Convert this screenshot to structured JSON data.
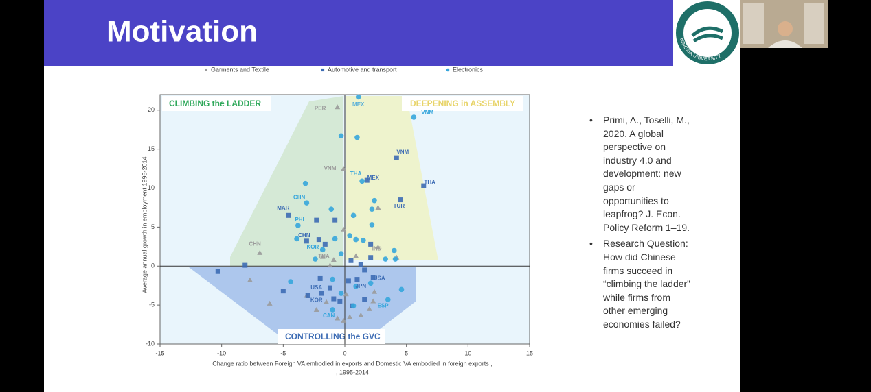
{
  "slide": {
    "title": "Motivation",
    "logo_text": "NINGXIA UNIVERSITY",
    "bullets": [
      "Primi, A., Toselli, M., 2020. A global perspective on industry 4.0 and development: new gaps or opportunities to leapfrog? J. Econ. Policy Reform 1–19.",
      "Research Question: How did Chinese firms succeed in “climbing the ladder” while firms from other emerging economies failed?"
    ]
  },
  "chart_data": {
    "type": "scatter",
    "x_label": [
      "Change ratio  between Foreign VA embodied in exports and  Domestic VA embodied in foreign exports ,",
      ", 1995-2014"
    ],
    "y_label": "Average annual growth in employment 1995-2014",
    "xlim": [
      -15,
      15
    ],
    "ylim": [
      -10,
      22
    ],
    "xticks": [
      -15,
      -10,
      -5,
      0,
      5,
      10,
      15
    ],
    "yticks": [
      -10,
      -5,
      0,
      5,
      10,
      15,
      20
    ],
    "regions": [
      "CLIMBING the LADDER",
      "DEEPENING in ASSEMBLY",
      "CONTROLLING the GVC"
    ],
    "series": [
      {
        "name": "Garments and Textile",
        "color": "#9a9a9a",
        "marker": "triangle",
        "x": [
          -0.6,
          -0.1,
          2.7,
          -6.9,
          -1.8,
          -0.9,
          0.9,
          2.7,
          4.2,
          -7.7,
          -6.1,
          -3.1,
          -2.3,
          -0.6,
          0.1,
          1.3,
          2.0,
          2.3,
          -1.5,
          -0.1,
          0.4,
          -0.1,
          -1.2,
          2.4
        ],
        "values": [
          20.4,
          12.5,
          7.5,
          1.7,
          1.2,
          0.8,
          1.3,
          2.4,
          1.1,
          -1.8,
          -4.8,
          -3.8,
          -5.6,
          -6.7,
          -3.6,
          -6.3,
          -5.5,
          -4.5,
          -4.6,
          -7.0,
          -6.5,
          4.7,
          0.1,
          -3.3
        ]
      },
      {
        "name": "Automotive and transport",
        "color": "#3d6cb4",
        "marker": "square",
        "x": [
          4.2,
          1.8,
          4.5,
          6.4,
          -4.6,
          -2.3,
          -0.8,
          -3.1,
          -2.1,
          -1.6,
          2.1,
          2.1,
          0.5,
          -8.1,
          -10.3,
          -5.0,
          -3.0,
          -2.0,
          -1.2,
          -0.9,
          -0.4,
          0.3,
          1.3,
          1.6,
          1.0,
          2.3,
          1.6,
          0.6,
          -1.9
        ],
        "values": [
          13.9,
          11.0,
          8.5,
          10.3,
          6.5,
          5.9,
          5.9,
          3.2,
          3.4,
          2.8,
          2.8,
          1.1,
          0.7,
          0.1,
          -0.7,
          -3.2,
          -3.8,
          -1.6,
          -2.8,
          -4.2,
          -4.5,
          -1.9,
          0.2,
          -0.5,
          -1.7,
          -1.5,
          -4.3,
          -5.1,
          -3.5
        ]
      },
      {
        "name": "Electronics",
        "color": "#36a6dc",
        "marker": "circle",
        "x": [
          1.1,
          5.6,
          -0.3,
          1.0,
          -3.2,
          1.4,
          -3.1,
          -1.1,
          2.4,
          2.2,
          -3.8,
          0.7,
          2.2,
          -3.9,
          -0.8,
          0.4,
          0.9,
          1.5,
          4.0,
          -2.4,
          -0.3,
          3.3,
          -4.4,
          -1.0,
          -0.3,
          0.9,
          4.6,
          3.5,
          -1.0,
          0.7,
          2.1,
          -1.8,
          4.1
        ],
        "values": [
          21.7,
          19.1,
          16.7,
          16.5,
          10.6,
          10.9,
          8.1,
          7.3,
          8.4,
          7.3,
          5.2,
          6.5,
          5.3,
          3.5,
          3.5,
          3.9,
          3.4,
          3.3,
          2.0,
          0.9,
          1.6,
          0.9,
          -2.0,
          -1.7,
          -3.5,
          -2.6,
          -3.0,
          -4.3,
          -5.6,
          -5.1,
          -2.2,
          2.1,
          0.9
        ]
      }
    ],
    "annotations": [
      {
        "text": "PER",
        "x": -2.0,
        "y": 20.2,
        "color": "#9a9a9a"
      },
      {
        "text": "MEX",
        "x": 1.1,
        "y": 20.7,
        "color": "#5ab0d8"
      },
      {
        "text": "VNM",
        "x": 6.7,
        "y": 19.7,
        "color": "#36a6dc"
      },
      {
        "text": "VNM",
        "x": 4.7,
        "y": 14.6,
        "color": "#3d6cb4"
      },
      {
        "text": "VNM",
        "x": -1.2,
        "y": 12.5,
        "color": "#9a9a9a"
      },
      {
        "text": "THA",
        "x": 0.9,
        "y": 11.8,
        "color": "#36a6dc"
      },
      {
        "text": "MEX",
        "x": 2.3,
        "y": 11.3,
        "color": "#3d6cb4"
      },
      {
        "text": "THA",
        "x": 6.9,
        "y": 10.7,
        "color": "#3d6cb4"
      },
      {
        "text": "CHN",
        "x": -3.7,
        "y": 8.8,
        "color": "#36a6dc"
      },
      {
        "text": "TUR",
        "x": 4.4,
        "y": 7.7,
        "color": "#3d6cb4"
      },
      {
        "text": "MAR",
        "x": -5.0,
        "y": 7.4,
        "color": "#3d6cb4"
      },
      {
        "text": "PHL",
        "x": -3.6,
        "y": 5.9,
        "color": "#36a6dc"
      },
      {
        "text": "CHN",
        "x": -3.3,
        "y": 3.9,
        "color": "#3d6cb4"
      },
      {
        "text": "KOR",
        "x": -2.6,
        "y": 2.4,
        "color": "#36a6dc"
      },
      {
        "text": "CHN",
        "x": -7.3,
        "y": 2.8,
        "color": "#9a9a9a"
      },
      {
        "text": "IND",
        "x": 2.6,
        "y": 2.2,
        "color": "#9a9a9a"
      },
      {
        "text": "THA",
        "x": -1.7,
        "y": 1.2,
        "color": "#9a9a9a"
      },
      {
        "text": "USA",
        "x": 2.8,
        "y": -1.6,
        "color": "#3d6cb4"
      },
      {
        "text": "USA",
        "x": -2.3,
        "y": -2.8,
        "color": "#3d6cb4"
      },
      {
        "text": "JPN",
        "x": 1.3,
        "y": -2.6,
        "color": "#3d6cb4"
      },
      {
        "text": "KOR",
        "x": -2.3,
        "y": -4.4,
        "color": "#3d6cb4"
      },
      {
        "text": "ESP",
        "x": 3.1,
        "y": -5.1,
        "color": "#36a6dc"
      },
      {
        "text": "CAN",
        "x": -1.3,
        "y": -6.4,
        "color": "#36a6dc"
      }
    ]
  }
}
